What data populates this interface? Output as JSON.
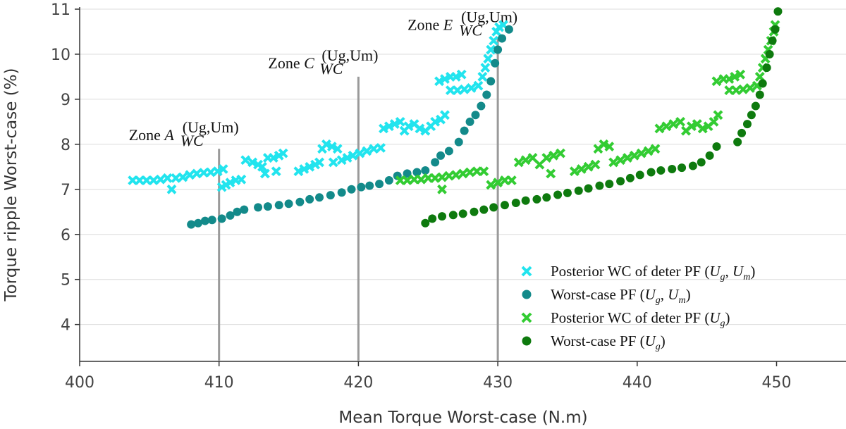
{
  "chart_data": {
    "type": "scatter",
    "xlabel": "Mean Torque Worst-case (N.m)",
    "ylabel": "Torque ripple Worst-case (%)",
    "xlim": [
      400,
      455
    ],
    "ylim": [
      3.2,
      11
    ],
    "x_ticks": [
      400,
      410,
      420,
      430,
      440,
      450
    ],
    "y_ticks": [
      4,
      5,
      6,
      7,
      8,
      9,
      10,
      11
    ],
    "grid": "horizontal",
    "legend_position": "bottom-right",
    "series": [
      {
        "name": "Posterior WC of deter PF (U_g, U_m)",
        "legend_text": "Posterior WC of deter PF (",
        "legend_vars": "Ug, Um",
        "marker": "x",
        "color": "#22e4ee",
        "points": [
          [
            403.8,
            7.2
          ],
          [
            404.3,
            7.2
          ],
          [
            404.8,
            7.2
          ],
          [
            405.3,
            7.2
          ],
          [
            405.8,
            7.22
          ],
          [
            406.3,
            7.25
          ],
          [
            406.6,
            7.0
          ],
          [
            406.9,
            7.25
          ],
          [
            407.4,
            7.27
          ],
          [
            407.9,
            7.32
          ],
          [
            408.4,
            7.35
          ],
          [
            408.9,
            7.37
          ],
          [
            409.4,
            7.38
          ],
          [
            409.9,
            7.4
          ],
          [
            410.2,
            7.05
          ],
          [
            410.3,
            7.45
          ],
          [
            410.5,
            7.1
          ],
          [
            410.8,
            7.15
          ],
          [
            411.2,
            7.2
          ],
          [
            411.6,
            7.22
          ],
          [
            411.9,
            7.65
          ],
          [
            412.4,
            7.6
          ],
          [
            412.8,
            7.55
          ],
          [
            413.1,
            7.5
          ],
          [
            413.3,
            7.35
          ],
          [
            413.5,
            7.7
          ],
          [
            413.9,
            7.7
          ],
          [
            414.3,
            7.75
          ],
          [
            414.6,
            7.8
          ],
          [
            414.1,
            7.4
          ],
          [
            415.7,
            7.4
          ],
          [
            416.1,
            7.45
          ],
          [
            416.5,
            7.5
          ],
          [
            416.9,
            7.55
          ],
          [
            417.2,
            7.6
          ],
          [
            417.4,
            7.9
          ],
          [
            417.7,
            8.0
          ],
          [
            418.1,
            7.95
          ],
          [
            418.5,
            7.9
          ],
          [
            418.2,
            7.6
          ],
          [
            418.8,
            7.65
          ],
          [
            419.2,
            7.7
          ],
          [
            419.6,
            7.75
          ],
          [
            420.1,
            7.8
          ],
          [
            420.6,
            7.85
          ],
          [
            421.1,
            7.9
          ],
          [
            421.6,
            7.92
          ],
          [
            421.8,
            8.35
          ],
          [
            422.2,
            8.4
          ],
          [
            422.6,
            8.45
          ],
          [
            423.0,
            8.5
          ],
          [
            423.3,
            8.3
          ],
          [
            423.6,
            8.4
          ],
          [
            424.0,
            8.45
          ],
          [
            424.4,
            8.35
          ],
          [
            424.8,
            8.3
          ],
          [
            425.2,
            8.4
          ],
          [
            425.5,
            8.5
          ],
          [
            425.9,
            8.55
          ],
          [
            426.2,
            8.65
          ],
          [
            425.8,
            9.4
          ],
          [
            426.2,
            9.45
          ],
          [
            426.6,
            9.5
          ],
          [
            427.0,
            9.5
          ],
          [
            427.4,
            9.55
          ],
          [
            426.6,
            9.2
          ],
          [
            427.1,
            9.2
          ],
          [
            427.6,
            9.22
          ],
          [
            428.1,
            9.25
          ],
          [
            428.6,
            9.3
          ],
          [
            428.9,
            9.5
          ],
          [
            429.1,
            9.7
          ],
          [
            429.3,
            9.9
          ],
          [
            429.5,
            10.1
          ],
          [
            429.7,
            10.3
          ],
          [
            429.9,
            10.5
          ],
          [
            430.1,
            10.6
          ],
          [
            430.4,
            10.65
          ]
        ]
      },
      {
        "name": "Worst-case PF (U_g, U_m)",
        "legend_text": "Worst-case PF (",
        "legend_vars": "Ug, Um",
        "marker": "o",
        "color": "#138a8a",
        "points": [
          [
            408.0,
            6.22
          ],
          [
            408.5,
            6.25
          ],
          [
            409.0,
            6.3
          ],
          [
            409.5,
            6.32
          ],
          [
            410.2,
            6.35
          ],
          [
            410.8,
            6.42
          ],
          [
            411.3,
            6.5
          ],
          [
            411.8,
            6.55
          ],
          [
            412.8,
            6.6
          ],
          [
            413.5,
            6.62
          ],
          [
            414.3,
            6.65
          ],
          [
            415.0,
            6.68
          ],
          [
            415.8,
            6.72
          ],
          [
            416.5,
            6.78
          ],
          [
            417.2,
            6.82
          ],
          [
            418.0,
            6.87
          ],
          [
            418.8,
            6.93
          ],
          [
            419.5,
            7.0
          ],
          [
            420.2,
            7.05
          ],
          [
            420.8,
            7.08
          ],
          [
            421.5,
            7.12
          ],
          [
            422.2,
            7.2
          ],
          [
            422.8,
            7.3
          ],
          [
            423.5,
            7.35
          ],
          [
            424.2,
            7.38
          ],
          [
            424.8,
            7.42
          ],
          [
            425.5,
            7.6
          ],
          [
            425.9,
            7.75
          ],
          [
            426.5,
            7.85
          ],
          [
            427.2,
            8.05
          ],
          [
            427.6,
            8.3
          ],
          [
            428.0,
            8.5
          ],
          [
            428.4,
            8.65
          ],
          [
            428.8,
            8.85
          ],
          [
            429.2,
            9.1
          ],
          [
            429.5,
            9.4
          ],
          [
            429.8,
            9.8
          ],
          [
            430.0,
            10.1
          ],
          [
            430.3,
            10.35
          ],
          [
            430.8,
            10.55
          ]
        ]
      },
      {
        "name": "Posterior WC of deter PF (U_g)",
        "legend_text": "Posterior WC of deter PF (",
        "legend_vars": "Ug",
        "marker": "x",
        "color": "#33cc33",
        "points": [
          [
            423.0,
            7.2
          ],
          [
            423.5,
            7.2
          ],
          [
            424.0,
            7.22
          ],
          [
            424.5,
            7.22
          ],
          [
            425.0,
            7.25
          ],
          [
            425.5,
            7.25
          ],
          [
            426.0,
            7.0
          ],
          [
            426.0,
            7.27
          ],
          [
            426.5,
            7.3
          ],
          [
            427.0,
            7.32
          ],
          [
            427.5,
            7.35
          ],
          [
            428.0,
            7.38
          ],
          [
            428.5,
            7.4
          ],
          [
            429.0,
            7.4
          ],
          [
            429.5,
            7.1
          ],
          [
            430.0,
            7.15
          ],
          [
            430.5,
            7.2
          ],
          [
            431.0,
            7.2
          ],
          [
            431.5,
            7.6
          ],
          [
            432.0,
            7.65
          ],
          [
            432.5,
            7.7
          ],
          [
            433.0,
            7.55
          ],
          [
            433.5,
            7.7
          ],
          [
            434.0,
            7.75
          ],
          [
            434.5,
            7.8
          ],
          [
            433.8,
            7.35
          ],
          [
            435.5,
            7.4
          ],
          [
            436.0,
            7.45
          ],
          [
            436.5,
            7.5
          ],
          [
            437.0,
            7.55
          ],
          [
            437.2,
            7.9
          ],
          [
            437.6,
            8.0
          ],
          [
            438.0,
            7.95
          ],
          [
            438.3,
            7.6
          ],
          [
            438.8,
            7.65
          ],
          [
            439.3,
            7.7
          ],
          [
            439.8,
            7.75
          ],
          [
            440.3,
            7.8
          ],
          [
            440.8,
            7.85
          ],
          [
            441.3,
            7.9
          ],
          [
            441.6,
            8.35
          ],
          [
            442.1,
            8.4
          ],
          [
            442.6,
            8.45
          ],
          [
            443.1,
            8.5
          ],
          [
            443.5,
            8.3
          ],
          [
            443.9,
            8.4
          ],
          [
            444.3,
            8.45
          ],
          [
            444.7,
            8.35
          ],
          [
            445.1,
            8.4
          ],
          [
            445.5,
            8.5
          ],
          [
            445.8,
            8.65
          ],
          [
            445.7,
            9.4
          ],
          [
            446.2,
            9.45
          ],
          [
            446.6,
            9.45
          ],
          [
            447.0,
            9.5
          ],
          [
            447.4,
            9.55
          ],
          [
            446.6,
            9.2
          ],
          [
            447.1,
            9.2
          ],
          [
            447.6,
            9.22
          ],
          [
            448.1,
            9.25
          ],
          [
            448.6,
            9.3
          ],
          [
            448.8,
            9.5
          ],
          [
            449.0,
            9.7
          ],
          [
            449.2,
            9.9
          ],
          [
            449.4,
            10.1
          ],
          [
            449.6,
            10.3
          ],
          [
            449.8,
            10.5
          ],
          [
            449.9,
            10.65
          ]
        ]
      },
      {
        "name": "Worst-case PF (U_g)",
        "legend_text": "Worst-case PF (",
        "legend_vars": "Ug",
        "marker": "o",
        "color": "#0e7a0e",
        "points": [
          [
            424.8,
            6.25
          ],
          [
            425.3,
            6.35
          ],
          [
            426.0,
            6.4
          ],
          [
            426.8,
            6.43
          ],
          [
            427.5,
            6.46
          ],
          [
            428.3,
            6.5
          ],
          [
            429.0,
            6.55
          ],
          [
            429.7,
            6.6
          ],
          [
            430.5,
            6.65
          ],
          [
            431.3,
            6.7
          ],
          [
            432.0,
            6.75
          ],
          [
            432.8,
            6.78
          ],
          [
            433.5,
            6.82
          ],
          [
            434.3,
            6.88
          ],
          [
            435.0,
            6.92
          ],
          [
            435.8,
            6.97
          ],
          [
            436.5,
            7.02
          ],
          [
            437.3,
            7.08
          ],
          [
            438.0,
            7.12
          ],
          [
            438.8,
            7.18
          ],
          [
            439.5,
            7.25
          ],
          [
            440.2,
            7.32
          ],
          [
            441.0,
            7.38
          ],
          [
            441.7,
            7.42
          ],
          [
            442.5,
            7.45
          ],
          [
            443.2,
            7.48
          ],
          [
            444.0,
            7.52
          ],
          [
            444.6,
            7.6
          ],
          [
            445.2,
            7.75
          ],
          [
            445.7,
            7.95
          ],
          [
            447.2,
            8.05
          ],
          [
            447.5,
            8.25
          ],
          [
            447.9,
            8.45
          ],
          [
            448.2,
            8.65
          ],
          [
            448.5,
            8.85
          ],
          [
            448.8,
            9.1
          ],
          [
            449.0,
            9.35
          ],
          [
            449.3,
            9.7
          ],
          [
            449.5,
            10.0
          ],
          [
            449.7,
            10.3
          ],
          [
            449.9,
            10.55
          ],
          [
            450.1,
            10.95
          ]
        ]
      }
    ],
    "zone_lines": [
      {
        "label": "Zone",
        "letter": "A",
        "sub": "WC",
        "sup": "(Ug,Um)",
        "x": 410,
        "y_bottom": 3.2,
        "y_top": 7.9
      },
      {
        "label": "Zone",
        "letter": "C",
        "sub": "WC",
        "sup": "(Ug,Um)",
        "x": 420,
        "y_bottom": 3.2,
        "y_top": 9.5
      },
      {
        "label": "Zone",
        "letter": "E",
        "sub": "WC",
        "sup": "(Ug,Um)",
        "x": 430,
        "y_bottom": 3.2,
        "y_top": 10.35
      }
    ]
  }
}
